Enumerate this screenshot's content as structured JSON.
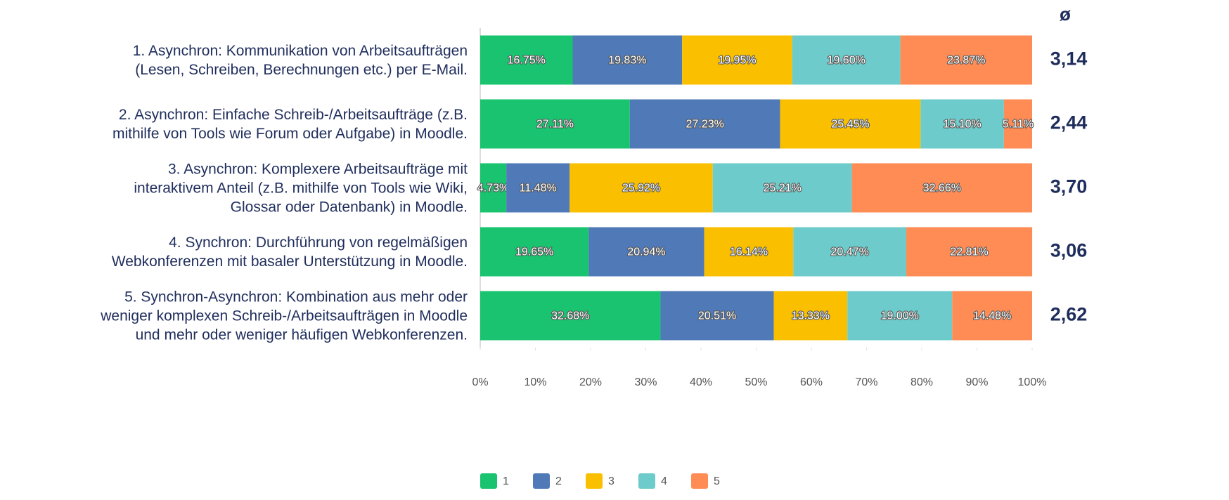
{
  "chart_data": {
    "type": "stacked-bar-horizontal",
    "categories": [
      "1. Asynchron: Kommunikation von Arbeitsaufträgen\n(Lesen, Schreiben, Berechnungen etc.) per E-Mail.",
      "2. Asynchron: Einfache Schreib-/Arbeitsaufträge (z.B.\nmithilfe von Tools wie Forum oder Aufgabe) in Moodle.",
      "3. Asynchron: Komplexere Arbeitsaufträge mit\ninteraktivem Anteil (z.B. mithilfe von Tools wie Wiki,\nGlossar oder Datenbank) in Moodle.",
      "4. Synchron: Durchführung von regelmäßigen\nWebkonferenzen mit basaler Unterstützung in Moodle.",
      "5. Synchron-Asynchron: Kombination aus mehr oder\nweniger komplexen Schreib-/Arbeitsaufträgen in Moodle\nund mehr oder weniger häufigen Webkonferenzen."
    ],
    "series": [
      {
        "name": "1",
        "color": "#19c36f",
        "values": [
          16.75,
          27.11,
          4.73,
          19.65,
          32.68
        ],
        "value_labels": [
          "16.75%",
          "27.11%",
          "4.73%",
          "19.65%",
          "32.68%"
        ]
      },
      {
        "name": "2",
        "color": "#5079b8",
        "values": [
          19.83,
          27.23,
          11.48,
          20.94,
          20.51
        ],
        "value_labels": [
          "19.83%",
          "27.23%",
          "11.48%",
          "20.94%",
          "20.51%"
        ]
      },
      {
        "name": "3",
        "color": "#fac000",
        "values": [
          19.95,
          25.45,
          25.92,
          16.14,
          13.33
        ],
        "value_labels": [
          "19.95%",
          "25.45%",
          "25.92%",
          "16.14%",
          "13.33%"
        ]
      },
      {
        "name": "4",
        "color": "#6ecbcb",
        "values": [
          19.6,
          15.1,
          25.21,
          20.47,
          19.0
        ],
        "value_labels": [
          "19.60%",
          "15.10%",
          "25.21%",
          "20.47%",
          "19.00%"
        ]
      },
      {
        "name": "5",
        "color": "#ff8b55",
        "values": [
          23.87,
          5.11,
          32.66,
          22.81,
          14.48
        ],
        "value_labels": [
          "23.87%",
          "5.11%",
          "32.66%",
          "22.81%",
          "14.48%"
        ]
      }
    ],
    "averages_header": "ø",
    "averages": [
      "3,14",
      "2,44",
      "3,70",
      "3,06",
      "2,62"
    ],
    "xlim": [
      0,
      100
    ],
    "xticks": [
      {
        "value": 0,
        "label": "0%"
      },
      {
        "value": 10,
        "label": "10%"
      },
      {
        "value": 20,
        "label": "20%"
      },
      {
        "value": 30,
        "label": "30%"
      },
      {
        "value": 40,
        "label": "40%"
      },
      {
        "value": 50,
        "label": "50%"
      },
      {
        "value": 60,
        "label": "60%"
      },
      {
        "value": 70,
        "label": "70%"
      },
      {
        "value": 80,
        "label": "80%"
      },
      {
        "value": 90,
        "label": "90%"
      },
      {
        "value": 100,
        "label": "100%"
      }
    ],
    "legend": "bottom"
  }
}
